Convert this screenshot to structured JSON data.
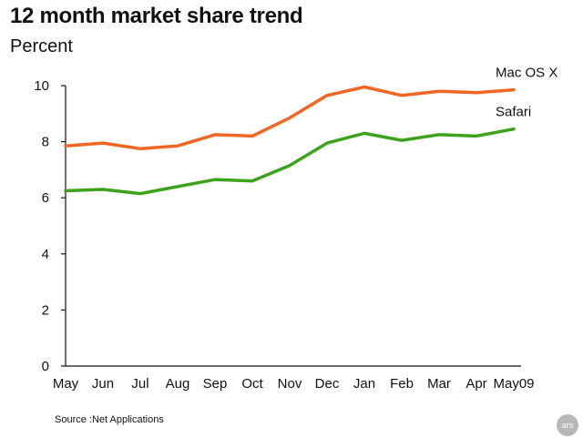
{
  "chart_data": {
    "type": "line",
    "title": "12 month market share trend",
    "subtitle": "Percent",
    "categories": [
      "May",
      "Jun",
      "Jul",
      "Aug",
      "Sep",
      "Oct",
      "Nov",
      "Dec",
      "Jan",
      "Feb",
      "Mar",
      "Apr",
      "May09"
    ],
    "series": [
      {
        "name": "Mac OS X",
        "color": "#f26522",
        "values": [
          7.85,
          7.95,
          7.75,
          7.85,
          8.25,
          8.2,
          8.85,
          9.65,
          9.95,
          9.65,
          9.8,
          9.75,
          9.85
        ]
      },
      {
        "name": "Safari",
        "color": "#3ea31c",
        "values": [
          6.25,
          6.3,
          6.15,
          6.4,
          6.65,
          6.6,
          7.15,
          7.95,
          8.3,
          8.05,
          8.25,
          8.2,
          8.45
        ]
      }
    ],
    "yticks": [
      0,
      2,
      4,
      6,
      8,
      10
    ],
    "ylim": [
      0,
      10
    ],
    "grid": false,
    "source": "Source :Net Applications"
  },
  "brand": {
    "logo_text": "ars"
  }
}
